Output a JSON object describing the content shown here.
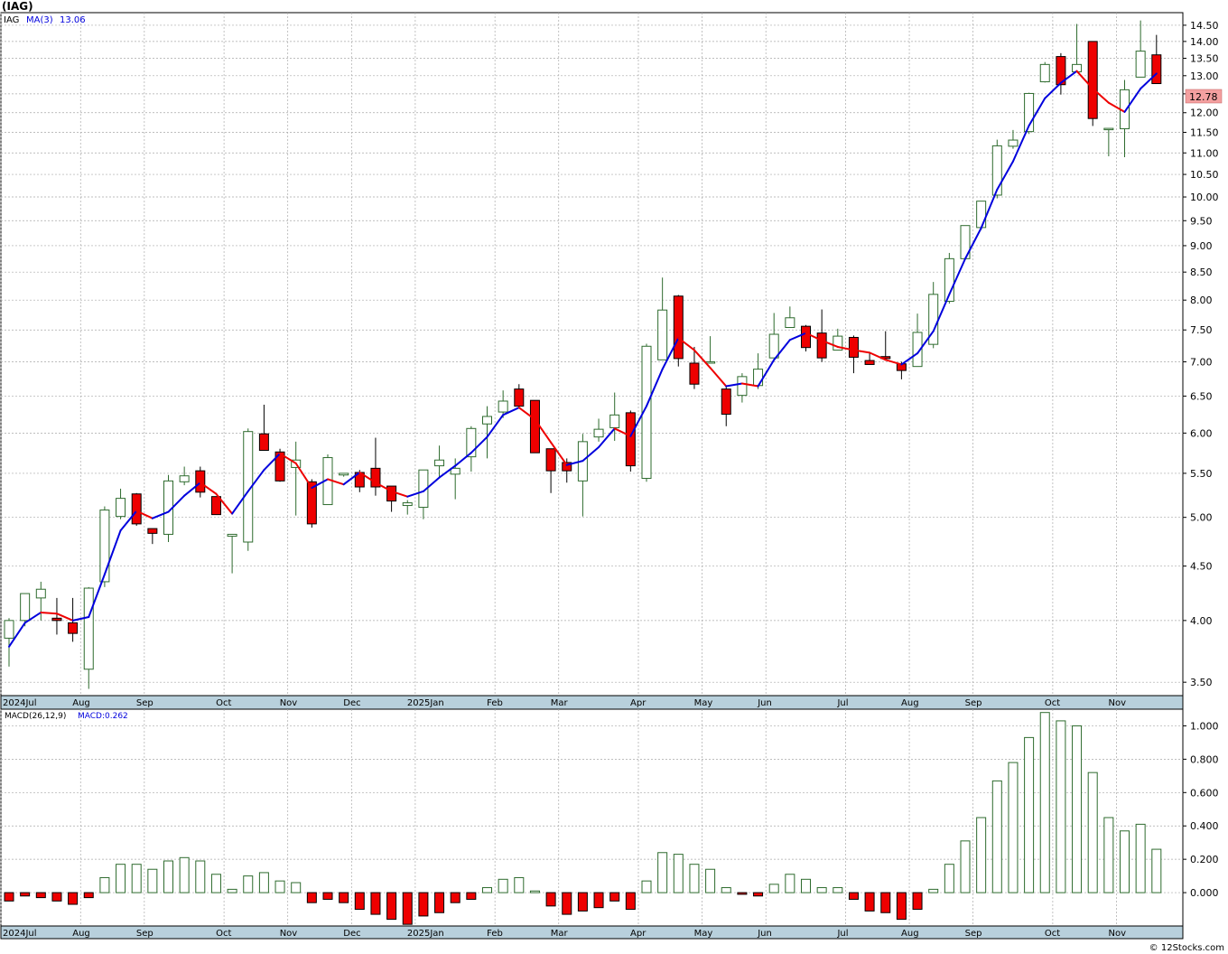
{
  "title": "(IAG)",
  "credit": "© 12Stocks.com",
  "colors": {
    "up": "#2e6b2e",
    "down": "#ee0000",
    "ma_up": "#0000dd",
    "ma_down": "#ee0000",
    "grid": "#a9a9a9",
    "axis_band": "#b8d0dc",
    "price_tag": "#f4a0a0"
  },
  "price_panel": {
    "symbol": "IAG",
    "ma_label": "MA(3)",
    "ma_value": "13.06",
    "last_price": "12.78"
  },
  "macd_panel": {
    "label": "MACD(26,12,9)",
    "value_label": "MACD:0.262"
  },
  "chart_data": [
    {
      "type": "candlestick",
      "scale": "log",
      "ylim": [
        3.4,
        14.9
      ],
      "y_ticks": [
        "3.50",
        "4.00",
        "4.50",
        "5.00",
        "5.50",
        "6.00",
        "6.50",
        "7.00",
        "7.50",
        "8.00",
        "8.50",
        "9.00",
        "9.50",
        "10.00",
        "10.50",
        "11.00",
        "11.50",
        "12.00",
        "12.50",
        "13.00",
        "13.50",
        "14.00",
        "14.50"
      ],
      "x_ticks": [
        {
          "label": "2024Jul",
          "week": 0
        },
        {
          "label": "Aug",
          "week": 5
        },
        {
          "label": "Sep",
          "week": 9
        },
        {
          "label": "Oct",
          "week": 14
        },
        {
          "label": "Nov",
          "week": 18
        },
        {
          "label": "Dec",
          "week": 22
        },
        {
          "label": "2025Jan",
          "week": 26
        },
        {
          "label": "Feb",
          "week": 31
        },
        {
          "label": "Mar",
          "week": 35
        },
        {
          "label": "Apr",
          "week": 40
        },
        {
          "label": "May",
          "week": 44
        },
        {
          "label": "Jun",
          "week": 48
        },
        {
          "label": "Jul",
          "week": 53
        },
        {
          "label": "Aug",
          "week": 57
        },
        {
          "label": "Sep",
          "week": 61
        },
        {
          "label": "Oct",
          "week": 66
        },
        {
          "label": "Nov",
          "week": 70
        }
      ],
      "ohlc": [
        [
          3.85,
          4.0,
          3.62,
          4.02
        ],
        [
          4.0,
          4.24,
          3.95,
          4.24
        ],
        [
          4.2,
          4.28,
          4.0,
          4.35
        ],
        [
          4.02,
          4.0,
          3.88,
          4.2
        ],
        [
          3.98,
          3.89,
          3.82,
          4.2
        ],
        [
          3.6,
          4.29,
          3.45,
          4.3
        ],
        [
          4.35,
          5.08,
          4.3,
          5.12
        ],
        [
          5.01,
          5.21,
          4.98,
          5.32
        ],
        [
          5.26,
          4.93,
          4.91,
          5.27
        ],
        [
          4.88,
          4.83,
          4.72,
          4.88
        ],
        [
          4.82,
          5.41,
          4.74,
          5.48
        ],
        [
          5.4,
          5.47,
          5.36,
          5.58
        ],
        [
          5.53,
          5.28,
          5.22,
          5.58
        ],
        [
          5.23,
          5.03,
          5.03,
          5.23
        ],
        [
          4.8,
          4.82,
          4.43,
          4.8
        ],
        [
          4.74,
          6.02,
          4.65,
          6.06
        ],
        [
          5.99,
          5.78,
          5.78,
          6.38
        ],
        [
          5.76,
          5.41,
          5.4,
          5.8
        ],
        [
          5.57,
          5.66,
          5.02,
          5.89
        ],
        [
          5.4,
          4.93,
          4.89,
          5.43
        ],
        [
          5.14,
          5.69,
          5.14,
          5.73
        ],
        [
          5.48,
          5.5,
          5.46,
          5.5
        ],
        [
          5.51,
          5.34,
          5.28,
          5.54
        ],
        [
          5.56,
          5.34,
          5.24,
          5.94
        ],
        [
          5.35,
          5.18,
          5.06,
          5.35
        ],
        [
          5.13,
          5.16,
          5.03,
          5.19
        ],
        [
          5.11,
          5.54,
          4.98,
          5.54
        ],
        [
          5.59,
          5.66,
          5.44,
          5.84
        ],
        [
          5.49,
          5.56,
          5.2,
          5.68
        ],
        [
          5.7,
          6.06,
          5.52,
          6.09
        ],
        [
          6.12,
          6.22,
          5.68,
          6.36
        ],
        [
          6.28,
          6.43,
          6.2,
          6.58
        ],
        [
          6.6,
          6.36,
          6.36,
          6.67
        ],
        [
          6.44,
          5.75,
          5.75,
          6.44
        ],
        [
          5.8,
          5.53,
          5.27,
          5.8
        ],
        [
          5.63,
          5.53,
          5.39,
          5.68
        ],
        [
          5.41,
          5.89,
          5.01,
          5.99
        ],
        [
          5.95,
          6.05,
          5.89,
          6.19
        ],
        [
          6.07,
          6.24,
          5.9,
          6.55
        ],
        [
          6.27,
          5.59,
          5.52,
          6.3
        ],
        [
          5.44,
          7.24,
          5.4,
          7.28
        ],
        [
          7.03,
          7.83,
          7.03,
          8.4
        ],
        [
          8.07,
          7.05,
          6.93,
          8.09
        ],
        [
          6.98,
          6.67,
          6.6,
          7.23
        ],
        [
          6.99,
          7.0,
          6.98,
          7.4
        ],
        [
          6.6,
          6.25,
          6.09,
          6.64
        ],
        [
          6.51,
          6.78,
          6.41,
          6.83
        ],
        [
          6.65,
          6.89,
          6.6,
          7.13
        ],
        [
          7.06,
          7.43,
          7.06,
          7.78
        ],
        [
          7.54,
          7.7,
          7.54,
          7.89
        ],
        [
          7.56,
          7.22,
          7.16,
          7.58
        ],
        [
          7.45,
          7.06,
          7.0,
          7.84
        ],
        [
          7.18,
          7.4,
          7.18,
          7.52
        ],
        [
          7.38,
          7.07,
          6.83,
          7.41
        ],
        [
          7.02,
          6.96,
          6.96,
          7.15
        ],
        [
          7.08,
          7.05,
          7.04,
          7.48
        ],
        [
          6.97,
          6.87,
          6.74,
          7.0
        ],
        [
          6.93,
          7.46,
          6.93,
          7.77
        ],
        [
          7.27,
          8.1,
          7.21,
          8.32
        ],
        [
          7.98,
          8.75,
          7.94,
          8.86
        ],
        [
          8.75,
          9.4,
          8.75,
          9.4
        ],
        [
          9.36,
          9.91,
          9.31,
          9.91
        ],
        [
          10.04,
          11.17,
          9.97,
          11.32
        ],
        [
          11.16,
          11.31,
          11.1,
          11.56
        ],
        [
          11.52,
          12.51,
          11.46,
          12.53
        ],
        [
          12.83,
          13.32,
          12.81,
          13.39
        ],
        [
          13.55,
          12.75,
          12.48,
          13.65
        ],
        [
          13.11,
          13.32,
          13.09,
          14.54
        ],
        [
          14.0,
          11.85,
          11.66,
          14.0
        ],
        [
          11.58,
          11.6,
          10.92,
          11.6
        ],
        [
          11.59,
          12.61,
          10.9,
          12.88
        ],
        [
          12.96,
          13.71,
          12.98,
          14.65
        ],
        [
          13.6,
          12.78,
          12.78,
          14.2
        ]
      ],
      "ma3": [
        3.78,
        3.98,
        4.07,
        4.06,
        4.0,
        4.03,
        4.42,
        4.86,
        5.07,
        4.99,
        5.06,
        5.24,
        5.39,
        5.26,
        5.04,
        5.29,
        5.54,
        5.74,
        5.62,
        5.33,
        5.43,
        5.37,
        5.51,
        5.39,
        5.29,
        5.23,
        5.29,
        5.45,
        5.59,
        5.75,
        5.95,
        6.24,
        6.34,
        6.18,
        5.88,
        5.6,
        5.65,
        5.82,
        6.06,
        5.96,
        6.36,
        6.89,
        7.37,
        7.18,
        6.91,
        6.64,
        6.68,
        6.64,
        7.03,
        7.34,
        7.45,
        7.33,
        7.23,
        7.18,
        7.14,
        7.03,
        6.96,
        7.13,
        7.48,
        8.1,
        8.75,
        9.35,
        10.16,
        10.8,
        11.67,
        12.38,
        12.8,
        13.13,
        12.64,
        12.26,
        12.02,
        12.64,
        13.06
      ]
    },
    {
      "type": "histogram",
      "series_name": "MACD(26,12,9)",
      "ylim": [
        -0.2,
        1.1
      ],
      "y_ticks": [
        "0.000",
        "0.200",
        "0.400",
        "0.600",
        "0.800",
        "1.000"
      ],
      "values": [
        -0.05,
        -0.02,
        -0.03,
        -0.05,
        -0.07,
        -0.03,
        0.09,
        0.17,
        0.17,
        0.14,
        0.19,
        0.21,
        0.19,
        0.11,
        0.02,
        0.1,
        0.12,
        0.07,
        0.06,
        -0.06,
        -0.04,
        -0.06,
        -0.1,
        -0.13,
        -0.16,
        -0.19,
        -0.14,
        -0.12,
        -0.06,
        -0.04,
        0.03,
        0.08,
        0.09,
        0.01,
        -0.08,
        -0.13,
        -0.11,
        -0.09,
        -0.05,
        -0.1,
        0.07,
        0.24,
        0.23,
        0.17,
        0.14,
        0.03,
        -0.01,
        -0.02,
        0.05,
        0.11,
        0.08,
        0.03,
        0.03,
        -0.04,
        -0.11,
        -0.12,
        -0.16,
        -0.1,
        0.02,
        0.17,
        0.31,
        0.45,
        0.67,
        0.78,
        0.93,
        1.08,
        1.03,
        1.0,
        0.72,
        0.45,
        0.37,
        0.41,
        0.26
      ]
    }
  ]
}
